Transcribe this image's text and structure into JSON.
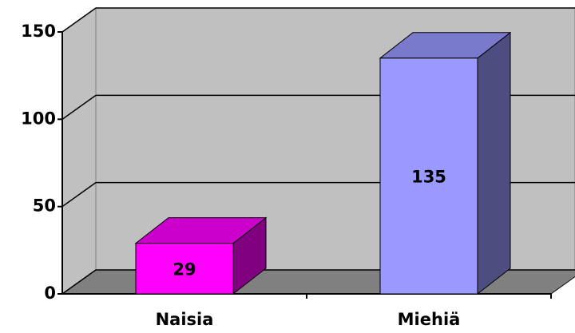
{
  "chart_data": {
    "type": "bar",
    "categories": [
      "Naisia",
      "Miehiä"
    ],
    "values": [
      29,
      135
    ],
    "colors": [
      "#ff00ff",
      "#9999ff"
    ],
    "ylim": [
      0,
      150
    ],
    "yticks": [
      0,
      50,
      100,
      150
    ],
    "grid": true
  }
}
